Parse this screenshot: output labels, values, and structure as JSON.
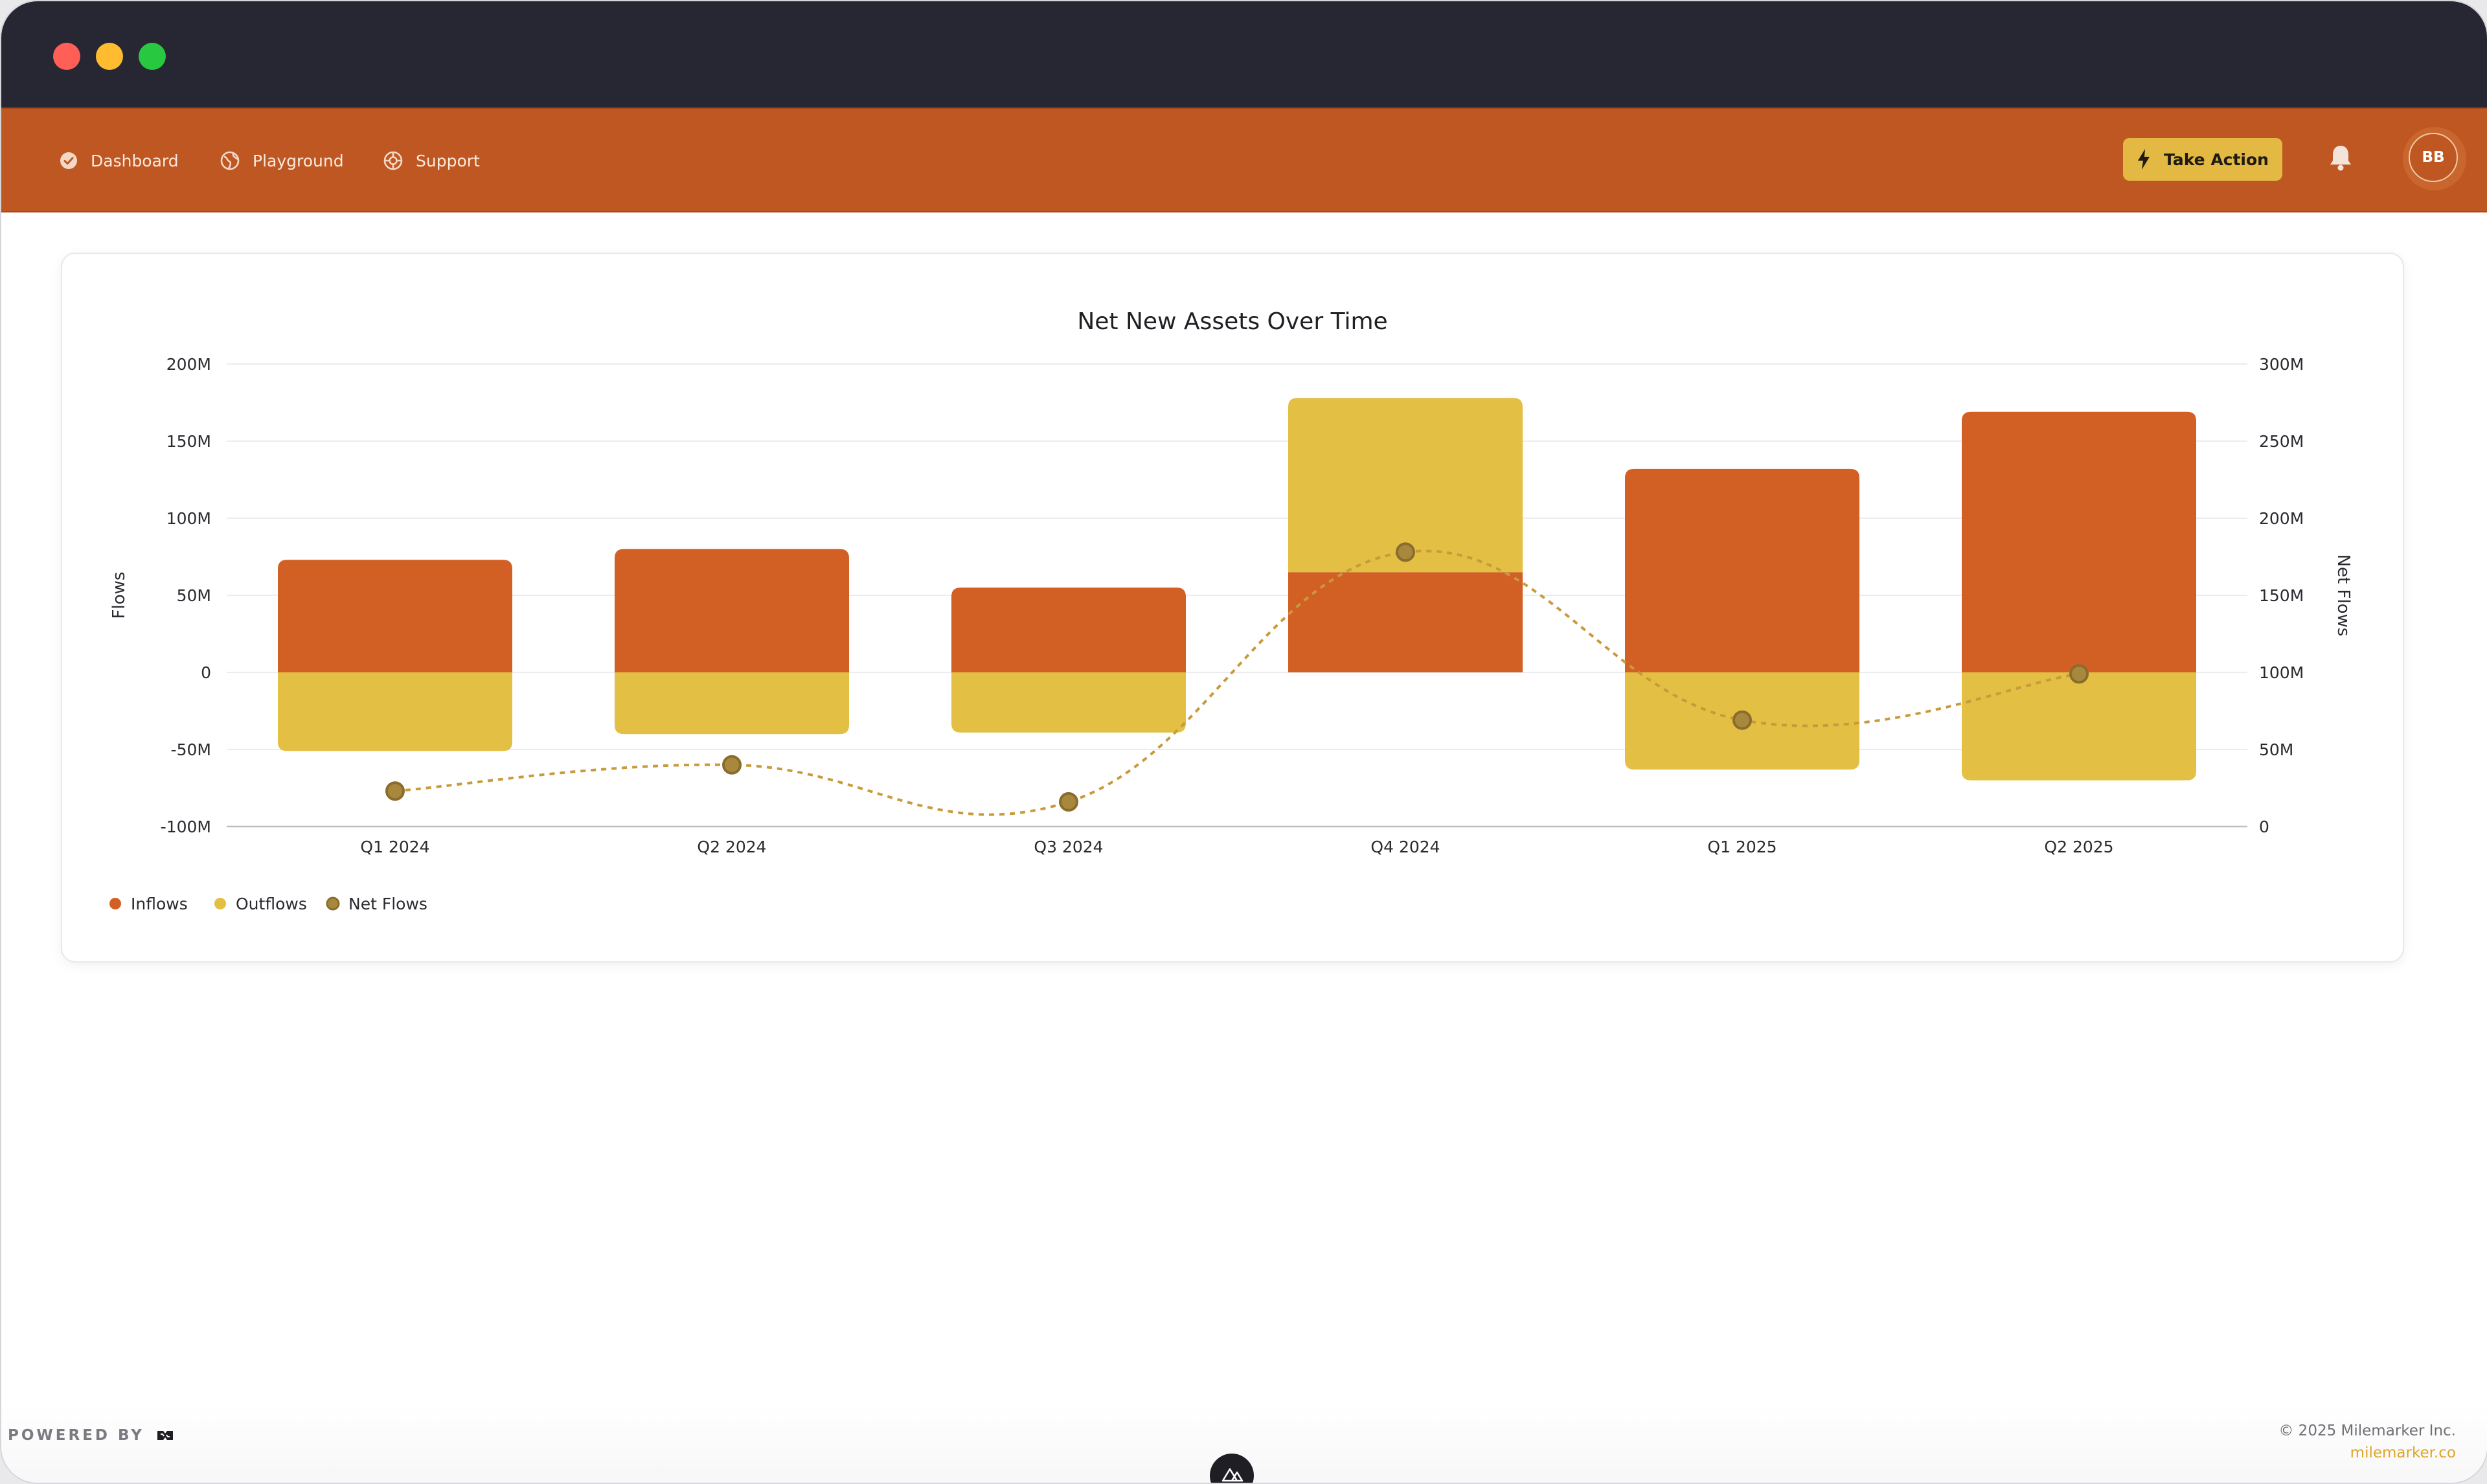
{
  "window": {
    "traffic_lights": [
      "#ff5f57",
      "#febc2e",
      "#28c840"
    ]
  },
  "nav": {
    "items": [
      {
        "label": "Dashboard",
        "icon": "check-circle-icon"
      },
      {
        "label": "Playground",
        "icon": "globe-icon"
      },
      {
        "label": "Support",
        "icon": "lifebuoy-icon"
      }
    ],
    "take_action": "Take Action",
    "avatar_initials": "BB"
  },
  "colors": {
    "nav": "#bf5722",
    "inflows": "#d26025",
    "outflows": "#e3bf43",
    "net": "#c79a3b",
    "accent": "#e3b943"
  },
  "chart_data": {
    "type": "bar",
    "title": "Net New Assets Over Time",
    "categories": [
      "Q1 2024",
      "Q2 2024",
      "Q3 2024",
      "Q4 2024",
      "Q1 2025",
      "Q2 2025"
    ],
    "series": [
      {
        "name": "Inflows",
        "type": "bar",
        "axis": "left",
        "values": [
          73,
          80,
          55,
          65,
          132,
          169
        ]
      },
      {
        "name": "Outflows",
        "type": "bar",
        "axis": "left",
        "values": [
          -51,
          -40,
          -39,
          113,
          -63,
          -70
        ]
      },
      {
        "name": "Net Flows",
        "type": "line",
        "axis": "right",
        "values": [
          23,
          40,
          16,
          178,
          69,
          99
        ]
      }
    ],
    "ylabel": "Flows",
    "y2label": "Net Flows",
    "ylim": [
      -100,
      200
    ],
    "y2lim": [
      0,
      300
    ],
    "yticks": [
      "200M",
      "150M",
      "100M",
      "50M",
      "0",
      "-50M",
      "-100M"
    ],
    "y2ticks": [
      "300M",
      "250M",
      "200M",
      "150M",
      "100M",
      "50M",
      "0"
    ],
    "grid": true,
    "legend_position": "bottom-left"
  },
  "footer": {
    "powered_by": "POWERED BY",
    "copyright": "© 2025 Milemarker Inc.",
    "site": "milemarker.co"
  }
}
